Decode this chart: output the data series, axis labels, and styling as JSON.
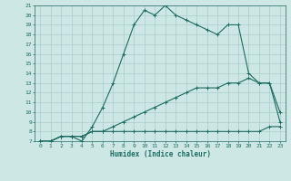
{
  "xlabel": "Humidex (Indice chaleur)",
  "xlim": [
    -0.5,
    23.5
  ],
  "ylim": [
    7,
    21
  ],
  "yticks": [
    7,
    8,
    9,
    10,
    11,
    12,
    13,
    14,
    15,
    16,
    17,
    18,
    19,
    20,
    21
  ],
  "xticks": [
    0,
    1,
    2,
    3,
    4,
    5,
    6,
    7,
    8,
    9,
    10,
    11,
    12,
    13,
    14,
    15,
    16,
    17,
    18,
    19,
    20,
    21,
    22,
    23
  ],
  "bg_color": "#cde8e4",
  "line_color": "#1e6b60",
  "grid_color": "#a8cccc",
  "line1_x": [
    0,
    1,
    2,
    3,
    4,
    5,
    6,
    7,
    8,
    9,
    10,
    11,
    12,
    13,
    14,
    15,
    16,
    17,
    18,
    19,
    20,
    21,
    22,
    23
  ],
  "line1_y": [
    7,
    7,
    7.5,
    7.5,
    7.5,
    8,
    8,
    8,
    8,
    8,
    8,
    8,
    8,
    8,
    8,
    8,
    8,
    8,
    8,
    8,
    8,
    8,
    8.5,
    8.5
  ],
  "line2_x": [
    0,
    1,
    2,
    3,
    4,
    5,
    6,
    7,
    8,
    9,
    10,
    11,
    12,
    13,
    14,
    15,
    16,
    17,
    18,
    19,
    20,
    21,
    22,
    23
  ],
  "line2_y": [
    7,
    7,
    7.5,
    7.5,
    7.5,
    8,
    8,
    8.5,
    9,
    9.5,
    10,
    10.5,
    11,
    11.5,
    12,
    12.5,
    12.5,
    12.5,
    13,
    13,
    13.5,
    13,
    13,
    9
  ],
  "line3_x": [
    0,
    1,
    2,
    3,
    4,
    5,
    6,
    7,
    8,
    9,
    10,
    11,
    12,
    13,
    14,
    15,
    16,
    17,
    18,
    19,
    20,
    21,
    22,
    23
  ],
  "line3_y": [
    7,
    7,
    7.5,
    7.5,
    7,
    8.5,
    10.5,
    13,
    16,
    19,
    20.5,
    20,
    21,
    20,
    19.5,
    19,
    18.5,
    18,
    19,
    19,
    14,
    13,
    13,
    10
  ]
}
